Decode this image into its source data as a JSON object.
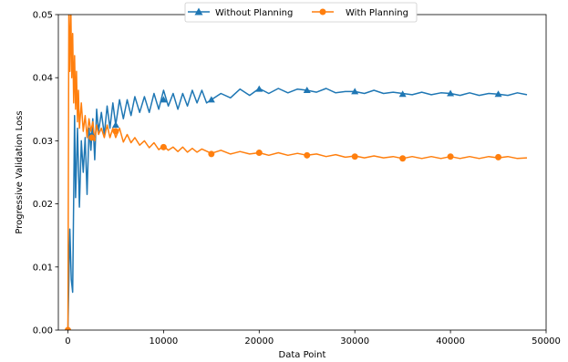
{
  "chart_data": {
    "type": "line",
    "title": "",
    "xlabel": "Data Point",
    "ylabel": "Progressive Validation Loss",
    "xlim": [
      -1000,
      50000
    ],
    "ylim": [
      0,
      0.05
    ],
    "xticks": [
      0,
      10000,
      20000,
      30000,
      40000,
      50000
    ],
    "yticks": [
      0.0,
      0.01,
      0.02,
      0.03,
      0.04,
      0.05
    ],
    "xtick_labels": [
      "0",
      "10000",
      "20000",
      "30000",
      "40000",
      "50000"
    ],
    "ytick_labels": [
      "0.00",
      "0.01",
      "0.02",
      "0.03",
      "0.04",
      "0.05"
    ],
    "legend_position": "top-center",
    "grid": false,
    "series": [
      {
        "name": "Without Planning",
        "color": "#1f77b4",
        "marker": "triangle",
        "x": [
          0,
          200,
          350,
          500,
          700,
          800,
          1000,
          1200,
          1400,
          1600,
          1800,
          2000,
          2200,
          2400,
          2600,
          2800,
          3000,
          3200,
          3500,
          3800,
          4100,
          4400,
          4700,
          5000,
          5400,
          5800,
          6200,
          6600,
          7000,
          7500,
          8000,
          8500,
          9000,
          9500,
          10000,
          10500,
          11000,
          11500,
          12000,
          12500,
          13000,
          13500,
          14000,
          14500,
          15000,
          16000,
          17000,
          18000,
          19000,
          20000,
          21000,
          22000,
          23000,
          24000,
          25000,
          26000,
          27000,
          28000,
          29000,
          30000,
          31000,
          32000,
          33000,
          34000,
          35000,
          36000,
          37000,
          38000,
          39000,
          40000,
          41000,
          42000,
          43000,
          44000,
          45000,
          46000,
          47000,
          48000
        ],
        "values": [
          0.0,
          0.016,
          0.008,
          0.006,
          0.034,
          0.021,
          0.032,
          0.0195,
          0.03,
          0.025,
          0.0305,
          0.0215,
          0.032,
          0.0285,
          0.0335,
          0.027,
          0.035,
          0.0315,
          0.0345,
          0.031,
          0.0355,
          0.032,
          0.036,
          0.0325,
          0.0365,
          0.0335,
          0.0365,
          0.034,
          0.037,
          0.0345,
          0.037,
          0.0345,
          0.0375,
          0.035,
          0.038,
          0.0355,
          0.0375,
          0.035,
          0.0375,
          0.0355,
          0.038,
          0.036,
          0.038,
          0.036,
          0.0365,
          0.0375,
          0.0368,
          0.0382,
          0.0372,
          0.0383,
          0.0375,
          0.0383,
          0.0376,
          0.0382,
          0.038,
          0.0377,
          0.0383,
          0.0376,
          0.0378,
          0.0378,
          0.0375,
          0.038,
          0.0375,
          0.0377,
          0.0375,
          0.0373,
          0.0377,
          0.0373,
          0.0376,
          0.0375,
          0.0372,
          0.0376,
          0.0372,
          0.0375,
          0.0374,
          0.0372,
          0.0376,
          0.0373
        ],
        "marker_x": [
          2500,
          5000,
          10000,
          15000,
          20000,
          25000,
          30000,
          35000,
          40000,
          45000
        ],
        "marker_values": [
          0.031,
          0.0325,
          0.0365,
          0.0365,
          0.0382,
          0.038,
          0.0378,
          0.0374,
          0.0375,
          0.0374
        ]
      },
      {
        "name": "With Planning",
        "color": "#ff7f0e",
        "marker": "circle",
        "x": [
          0,
          100,
          200,
          300,
          400,
          500,
          600,
          700,
          800,
          900,
          1000,
          1100,
          1200,
          1400,
          1600,
          1800,
          2000,
          2200,
          2400,
          2600,
          2800,
          3000,
          3200,
          3500,
          3800,
          4100,
          4400,
          4700,
          5000,
          5400,
          5800,
          6200,
          6600,
          7000,
          7500,
          8000,
          8500,
          9000,
          9500,
          10000,
          10500,
          11000,
          11500,
          12000,
          12500,
          13000,
          13500,
          14000,
          15000,
          16000,
          17000,
          18000,
          19000,
          20000,
          21000,
          22000,
          23000,
          24000,
          25000,
          26000,
          27000,
          28000,
          29000,
          30000,
          31000,
          32000,
          33000,
          34000,
          35000,
          36000,
          37000,
          38000,
          39000,
          40000,
          41000,
          42000,
          43000,
          44000,
          45000,
          46000,
          47000,
          48000
        ],
        "values": [
          0.0,
          0.05,
          0.041,
          0.052,
          0.04,
          0.047,
          0.036,
          0.0435,
          0.035,
          0.041,
          0.033,
          0.038,
          0.032,
          0.036,
          0.0315,
          0.034,
          0.0305,
          0.0335,
          0.0315,
          0.033,
          0.03,
          0.0325,
          0.031,
          0.032,
          0.0305,
          0.0325,
          0.0305,
          0.032,
          0.0305,
          0.032,
          0.0298,
          0.031,
          0.0297,
          0.0305,
          0.0293,
          0.03,
          0.0289,
          0.0297,
          0.0286,
          0.0292,
          0.0285,
          0.029,
          0.0283,
          0.029,
          0.0282,
          0.0288,
          0.0282,
          0.0287,
          0.028,
          0.0285,
          0.0279,
          0.0283,
          0.0279,
          0.0281,
          0.0277,
          0.0281,
          0.0277,
          0.028,
          0.0277,
          0.0279,
          0.0275,
          0.0278,
          0.0274,
          0.0276,
          0.0273,
          0.0276,
          0.0273,
          0.0275,
          0.0272,
          0.0275,
          0.0272,
          0.0275,
          0.0272,
          0.0275,
          0.0272,
          0.0275,
          0.0272,
          0.0275,
          0.0273,
          0.0275,
          0.0272,
          0.0273
        ],
        "marker_x": [
          0,
          2500,
          5000,
          10000,
          15000,
          20000,
          25000,
          30000,
          35000,
          40000,
          45000
        ],
        "marker_values": [
          0.0,
          0.0305,
          0.0315,
          0.029,
          0.0279,
          0.0281,
          0.0277,
          0.0275,
          0.0272,
          0.0275,
          0.0274
        ]
      }
    ]
  }
}
